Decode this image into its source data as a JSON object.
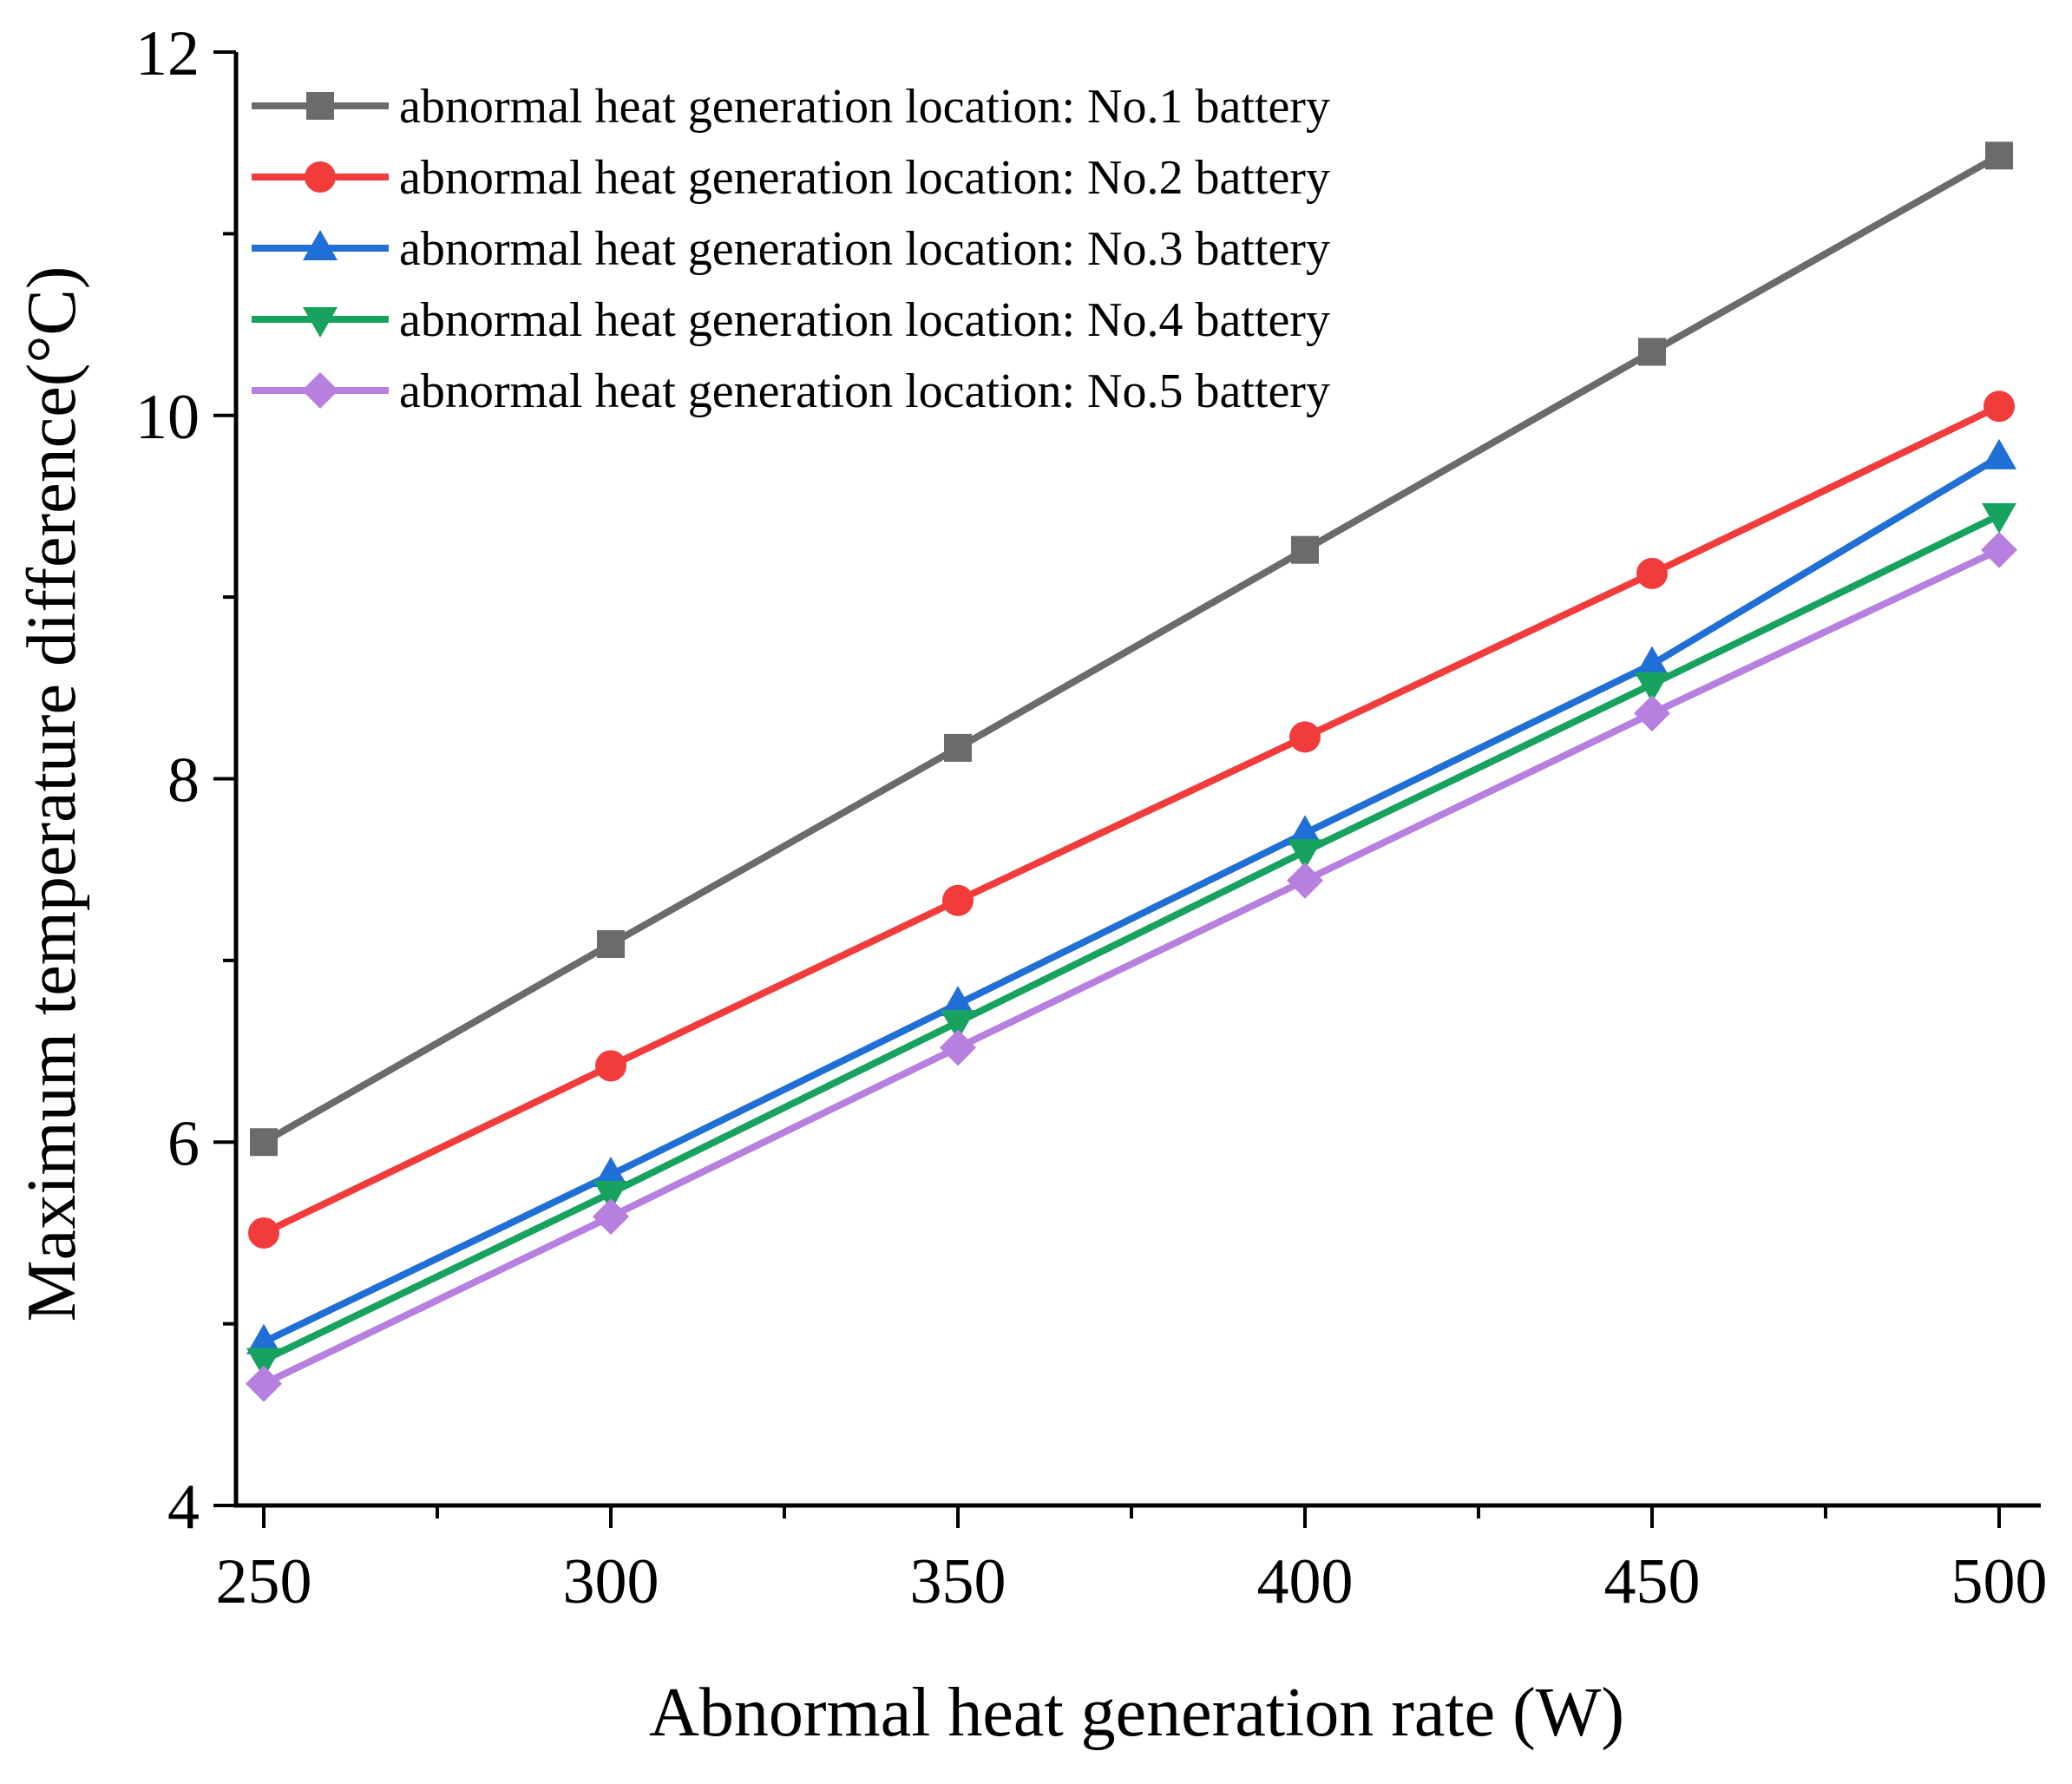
{
  "chart_data": {
    "type": "line",
    "title": "",
    "xlabel": "Abnormal heat generation rate (W)",
    "ylabel": "Maximum temperature difference(°C)",
    "x": [
      250,
      300,
      350,
      400,
      450,
      500
    ],
    "xlim": [
      246,
      506
    ],
    "ylim": [
      4,
      12
    ],
    "xticks": [
      250,
      300,
      350,
      400,
      450,
      500
    ],
    "yticks": [
      4,
      6,
      8,
      10,
      12
    ],
    "legend_position": "top-left",
    "grid": false,
    "series": [
      {
        "name": "abnormal heat generation location: No.1 battery",
        "color": "#6b6b6b",
        "marker": "square",
        "values": [
          6.0,
          7.09,
          8.17,
          9.26,
          10.35,
          11.43
        ]
      },
      {
        "name": "abnormal heat generation location: No.2 battery",
        "color": "#f23c3c",
        "marker": "circle",
        "values": [
          5.5,
          6.42,
          7.33,
          8.23,
          9.13,
          10.05
        ]
      },
      {
        "name": "abnormal heat generation location: No.3 battery",
        "color": "#1f6fd6",
        "marker": "triangle-up",
        "values": [
          4.9,
          5.82,
          6.76,
          7.7,
          8.63,
          9.77
        ]
      },
      {
        "name": "abnormal heat generation location: No.4 battery",
        "color": "#17a35f",
        "marker": "triangle-down",
        "values": [
          4.8,
          5.72,
          6.66,
          7.6,
          8.52,
          9.45
        ]
      },
      {
        "name": "abnormal heat generation location: No.5 battery",
        "color": "#b77fe0",
        "marker": "diamond",
        "values": [
          4.67,
          5.59,
          6.52,
          7.44,
          8.36,
          9.26
        ]
      }
    ]
  }
}
